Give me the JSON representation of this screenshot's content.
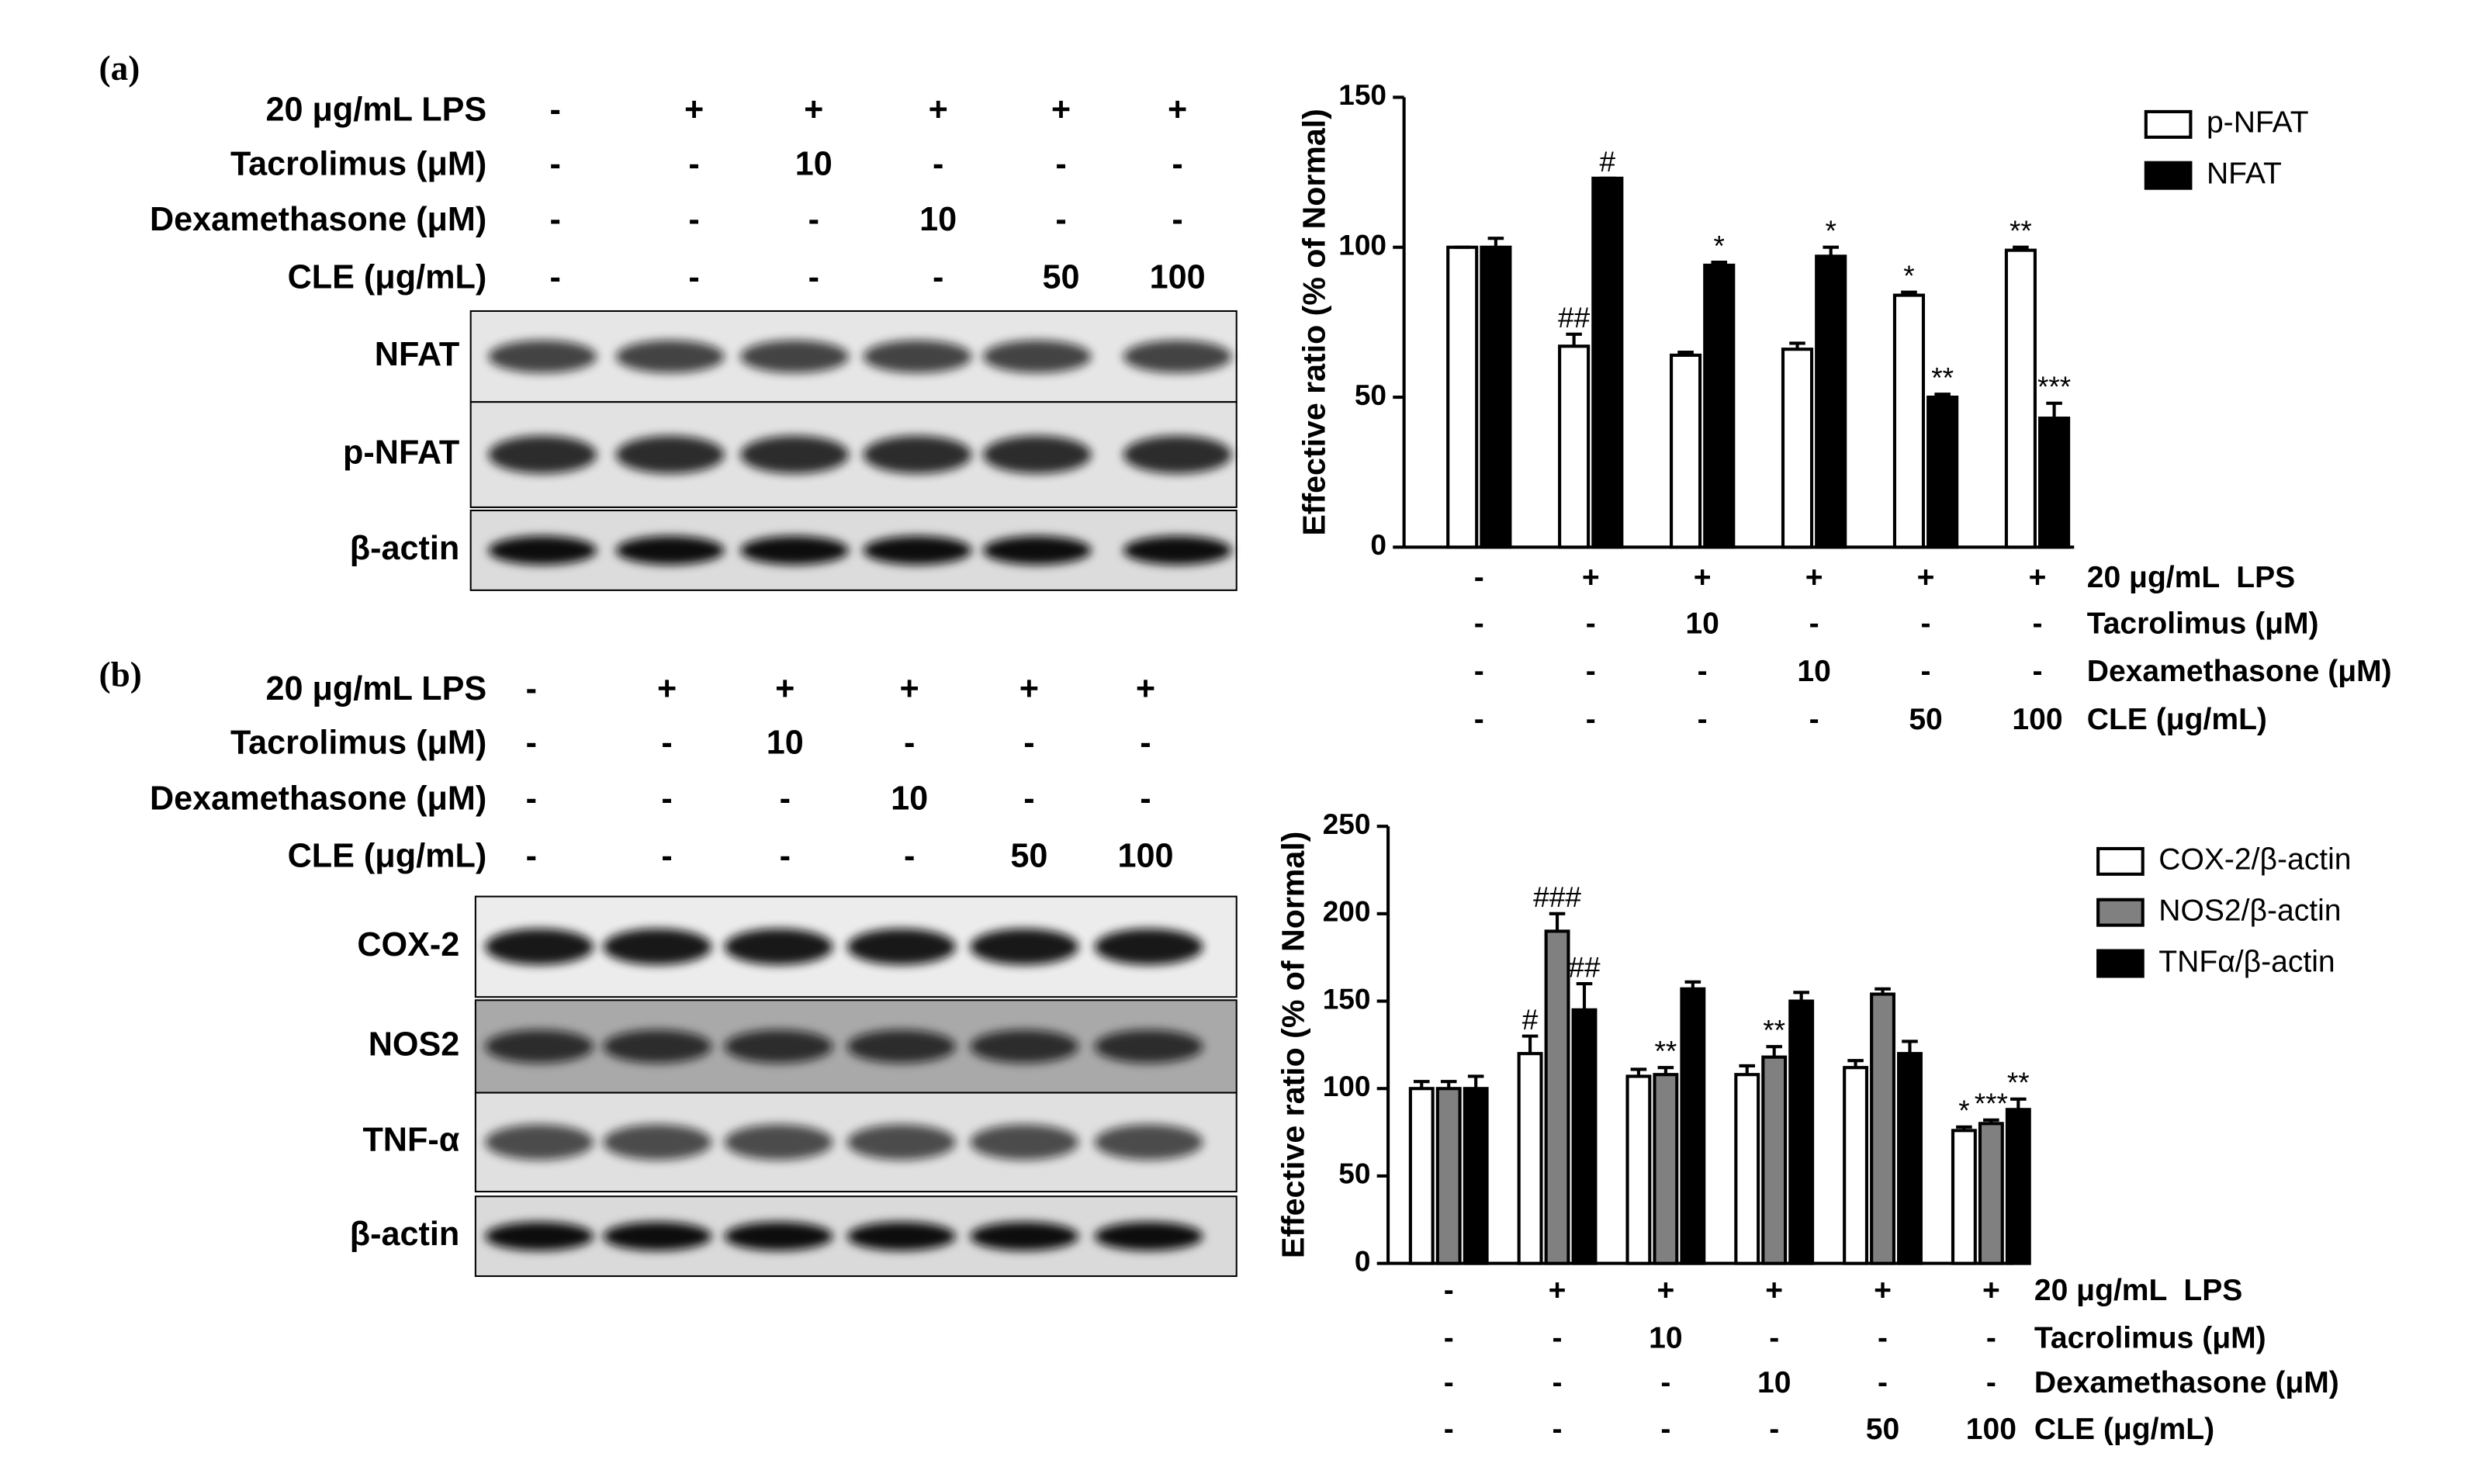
{
  "panels": [
    {
      "label": "(a)",
      "treatments": [
        {
          "name": "20 μg/mL LPS",
          "labels": [
            "-",
            "+",
            "+",
            "+",
            "+",
            "+"
          ]
        },
        {
          "name": "Tacrolimus (μM)",
          "labels": [
            "-",
            "-",
            "10",
            "-",
            "-",
            "-"
          ]
        },
        {
          "name": "Dexamethasone (μM)",
          "labels": [
            "-",
            "-",
            "-",
            "10",
            "-",
            "-"
          ]
        },
        {
          "name": "CLE (μg/mL)",
          "labels": [
            "-",
            "-",
            "-",
            "-",
            "50",
            "100"
          ]
        }
      ],
      "blot_rows": [
        "NFAT",
        "p-NFAT",
        "β-actin"
      ]
    },
    {
      "label": "(b)",
      "treatments": [
        {
          "name": "20 μg/mL LPS",
          "labels": [
            "-",
            "+",
            "+",
            "+",
            "+",
            "+"
          ]
        },
        {
          "name": "Tacrolimus (μM)",
          "labels": [
            "-",
            "-",
            "10",
            "-",
            "-",
            "-"
          ]
        },
        {
          "name": "Dexamethasone (μM)",
          "labels": [
            "-",
            "-",
            "-",
            "10",
            "-",
            "-"
          ]
        },
        {
          "name": "CLE (μg/mL)",
          "labels": [
            "-",
            "-",
            "-",
            "-",
            "50",
            "100"
          ]
        }
      ],
      "blot_rows": [
        "COX-2",
        "NOS2",
        "TNF-α",
        "β-actin"
      ]
    }
  ],
  "chart_data": [
    {
      "type": "bar",
      "y_label": "Effective ratio (% of Normal)",
      "ylim": [
        0,
        150
      ],
      "yticks": [
        0,
        50,
        100,
        150
      ],
      "treatment_rows": [
        {
          "name": "20 μg/mL  LPS",
          "labels": [
            "-",
            "+",
            "+",
            "+",
            "+",
            "+"
          ]
        },
        {
          "name": "Tacrolimus (μM)",
          "labels": [
            "-",
            "-",
            "10",
            "-",
            "-",
            "-"
          ]
        },
        {
          "name": "Dexamethasone (μM)",
          "labels": [
            "-",
            "-",
            "-",
            "10",
            "-",
            "-"
          ]
        },
        {
          "name": "CLE (μg/mL)",
          "labels": [
            "-",
            "-",
            "-",
            "-",
            "50",
            "100"
          ]
        }
      ],
      "series": [
        {
          "name": "p-NFAT",
          "color": "#ffffff",
          "values": [
            100,
            67,
            64,
            66,
            84,
            99
          ],
          "errors": [
            0,
            4,
            1,
            2,
            1,
            1
          ],
          "significance": [
            null,
            "##",
            null,
            null,
            "*",
            "**"
          ]
        },
        {
          "name": "NFAT",
          "color": "#000000",
          "values": [
            100,
            123,
            94,
            97,
            50,
            43
          ],
          "errors": [
            3,
            0,
            1,
            3,
            1,
            5
          ],
          "significance": [
            null,
            "#",
            "*",
            "*",
            "**",
            "***"
          ]
        }
      ]
    },
    {
      "type": "bar",
      "y_label": "Effective ratio (% of Normal)",
      "ylim": [
        0,
        250
      ],
      "yticks": [
        0,
        50,
        100,
        150,
        200,
        250
      ],
      "treatment_rows": [
        {
          "name": "20 μg/mL  LPS",
          "labels": [
            "-",
            "+",
            "+",
            "+",
            "+",
            "+"
          ]
        },
        {
          "name": "Tacrolimus (μM)",
          "labels": [
            "-",
            "-",
            "10",
            "-",
            "-",
            "-"
          ]
        },
        {
          "name": "Dexamethasone (μM)",
          "labels": [
            "-",
            "-",
            "-",
            "10",
            "-",
            "-"
          ]
        },
        {
          "name": "CLE (μg/mL)",
          "labels": [
            "-",
            "-",
            "-",
            "-",
            "50",
            "100"
          ]
        }
      ],
      "series": [
        {
          "name": "COX-2/β-actin",
          "color": "#ffffff",
          "values": [
            100,
            120,
            107,
            108,
            112,
            76
          ],
          "errors": [
            4,
            10,
            4,
            5,
            4,
            2
          ],
          "significance": [
            null,
            "#",
            null,
            null,
            null,
            "*"
          ]
        },
        {
          "name": "NOS2/β-actin",
          "color": "#808080",
          "values": [
            100,
            190,
            108,
            118,
            154,
            80
          ],
          "errors": [
            4,
            10,
            4,
            6,
            3,
            2
          ],
          "significance": [
            null,
            "###",
            "**",
            "**",
            null,
            "***"
          ]
        },
        {
          "name": "TNFα/β-actin",
          "color": "#000000",
          "values": [
            100,
            145,
            157,
            150,
            120,
            88
          ],
          "errors": [
            7,
            15,
            4,
            5,
            7,
            6
          ],
          "significance": [
            null,
            "##",
            null,
            null,
            null,
            "**"
          ]
        }
      ]
    }
  ]
}
